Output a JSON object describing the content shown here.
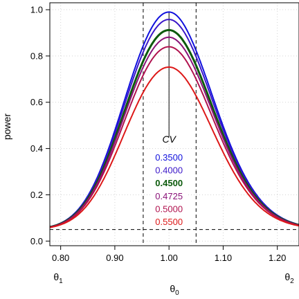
{
  "chart_data": {
    "type": "line",
    "xlabel": "θ0",
    "ylabel": "power",
    "xlim": [
      0.78,
      1.24
    ],
    "ylim": [
      -0.02,
      1.03
    ],
    "x_ticks": [
      {
        "value": 0.8,
        "label": "0.80"
      },
      {
        "value": 0.9,
        "label": "0.90"
      },
      {
        "value": 1.0,
        "label": "1.00"
      },
      {
        "value": 1.1,
        "label": "1.10"
      },
      {
        "value": 1.2,
        "label": "1.20"
      }
    ],
    "y_ticks": [
      {
        "value": 0.0,
        "label": "0.0"
      },
      {
        "value": 0.2,
        "label": "0.2"
      },
      {
        "value": 0.4,
        "label": "0.4"
      },
      {
        "value": 0.6,
        "label": "0.6"
      },
      {
        "value": 0.8,
        "label": "0.8"
      },
      {
        "value": 1.0,
        "label": "1.0"
      }
    ],
    "grid": true,
    "theta1": {
      "value": 0.8,
      "label": "θ1"
    },
    "theta2": {
      "value": 1.25,
      "label": "θ2"
    },
    "alpha_line": 0.05,
    "vlines": [
      0.9524,
      1.05
    ],
    "legend_title": "CV",
    "series": [
      {
        "name": "0.3500",
        "color": "#1010dd",
        "bold": false,
        "peak": 0.99,
        "sigma_left": 0.084
      },
      {
        "name": "0.4000",
        "color": "#3a16c8",
        "bold": false,
        "peak": 0.958,
        "sigma_left": 0.084
      },
      {
        "name": "0.4500",
        "color": "#0c5a0c",
        "bold": true,
        "peak": 0.912,
        "sigma_left": 0.084
      },
      {
        "name": "0.4725",
        "color": "#8a1278",
        "bold": false,
        "peak": 0.881,
        "sigma_left": 0.084
      },
      {
        "name": "0.5000",
        "color": "#b0124e",
        "bold": false,
        "peak": 0.84,
        "sigma_left": 0.084
      },
      {
        "name": "0.5500",
        "color": "#dd1818",
        "bold": false,
        "peak": 0.752,
        "sigma_left": 0.084
      }
    ]
  }
}
